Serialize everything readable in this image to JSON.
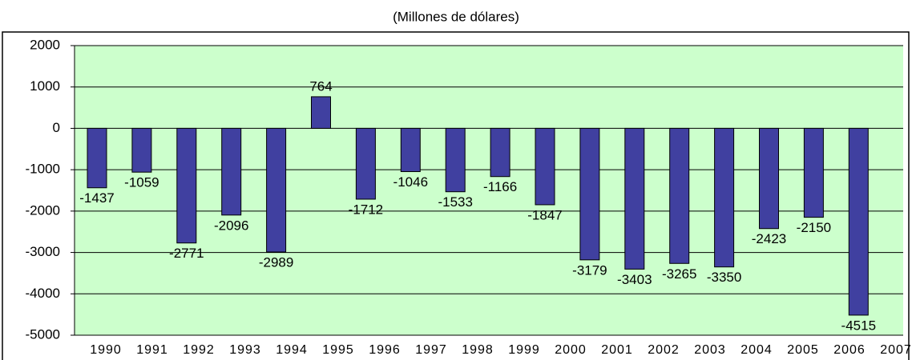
{
  "chart_data": {
    "type": "bar",
    "title": "(Millones de dólares)",
    "categories": [
      "1990",
      "1991",
      "1992",
      "1993",
      "1994",
      "1995",
      "1996",
      "1997",
      "1998",
      "1999",
      "2000",
      "2001",
      "2002",
      "2003",
      "2004",
      "2005",
      "2006",
      "2007"
    ],
    "values": [
      -1437,
      -1059,
      -2771,
      -2096,
      -2989,
      764,
      -1712,
      -1046,
      -1533,
      -1166,
      -1847,
      -3179,
      -3403,
      -3265,
      -3350,
      -2423,
      -2150,
      -4515
    ],
    "color": "#4040a0",
    "ylim": [
      -5000,
      2000
    ],
    "yticks": [
      -5000,
      -4000,
      -3000,
      -2000,
      -1000,
      0,
      1000,
      2000
    ],
    "grid": true
  }
}
